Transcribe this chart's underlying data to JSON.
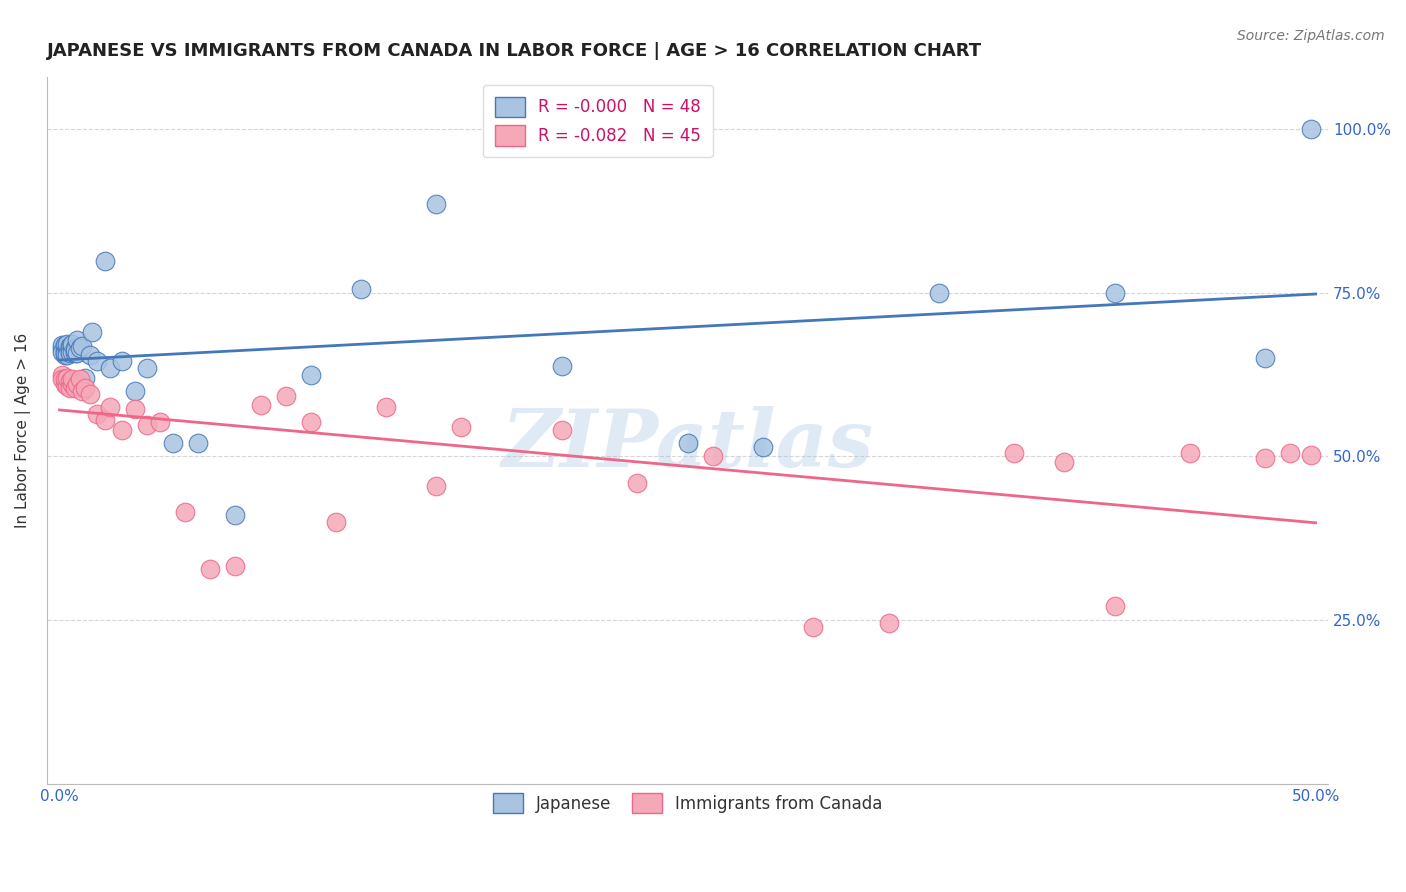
{
  "title": "JAPANESE VS IMMIGRANTS FROM CANADA IN LABOR FORCE | AGE > 16 CORRELATION CHART",
  "source": "Source: ZipAtlas.com",
  "ylabel": "In Labor Force | Age > 16",
  "blue_color": "#A8C4E0",
  "pink_color": "#F4A8B8",
  "blue_line_color": "#4477BB",
  "pink_line_color": "#EE6688",
  "legend_blue_label": "R = -0.000   N = 48",
  "legend_pink_label": "R = -0.082   N = 45",
  "background_color": "#FFFFFF",
  "grid_color": "#CCCCCC",
  "watermark": "ZIPatlas",
  "blue_x": [
    0.001,
    0.001,
    0.001,
    0.002,
    0.002,
    0.002,
    0.002,
    0.002,
    0.003,
    0.003,
    0.003,
    0.003,
    0.004,
    0.004,
    0.004,
    0.004,
    0.005,
    0.005,
    0.005,
    0.006,
    0.006,
    0.006,
    0.007,
    0.007,
    0.008,
    0.009,
    0.01,
    0.012,
    0.013,
    0.015,
    0.018,
    0.02,
    0.025,
    0.03,
    0.035,
    0.045,
    0.055,
    0.07,
    0.1,
    0.12,
    0.15,
    0.2,
    0.25,
    0.28,
    0.35,
    0.42,
    0.48,
    0.498
  ],
  "blue_y": [
    0.665,
    0.67,
    0.66,
    0.668,
    0.662,
    0.655,
    0.67,
    0.658,
    0.665,
    0.66,
    0.672,
    0.655,
    0.668,
    0.66,
    0.665,
    0.658,
    0.668,
    0.66,
    0.672,
    0.665,
    0.658,
    0.662,
    0.678,
    0.658,
    0.665,
    0.668,
    0.62,
    0.655,
    0.69,
    0.645,
    0.798,
    0.635,
    0.645,
    0.6,
    0.635,
    0.52,
    0.52,
    0.41,
    0.625,
    0.755,
    0.885,
    0.638,
    0.52,
    0.515,
    0.75,
    0.75,
    0.65,
    1.0
  ],
  "pink_x": [
    0.001,
    0.001,
    0.002,
    0.002,
    0.003,
    0.003,
    0.004,
    0.004,
    0.005,
    0.005,
    0.006,
    0.007,
    0.008,
    0.009,
    0.01,
    0.012,
    0.015,
    0.018,
    0.02,
    0.025,
    0.03,
    0.035,
    0.04,
    0.05,
    0.06,
    0.07,
    0.08,
    0.09,
    0.1,
    0.11,
    0.13,
    0.15,
    0.16,
    0.2,
    0.23,
    0.26,
    0.3,
    0.33,
    0.38,
    0.4,
    0.42,
    0.45,
    0.48,
    0.49,
    0.498
  ],
  "pink_y": [
    0.625,
    0.618,
    0.61,
    0.618,
    0.608,
    0.62,
    0.615,
    0.605,
    0.61,
    0.618,
    0.605,
    0.61,
    0.618,
    0.6,
    0.605,
    0.595,
    0.565,
    0.555,
    0.575,
    0.54,
    0.572,
    0.548,
    0.552,
    0.415,
    0.328,
    0.332,
    0.578,
    0.592,
    0.552,
    0.4,
    0.575,
    0.455,
    0.545,
    0.54,
    0.46,
    0.5,
    0.24,
    0.245,
    0.505,
    0.492,
    0.272,
    0.505,
    0.498,
    0.505,
    0.502
  ]
}
